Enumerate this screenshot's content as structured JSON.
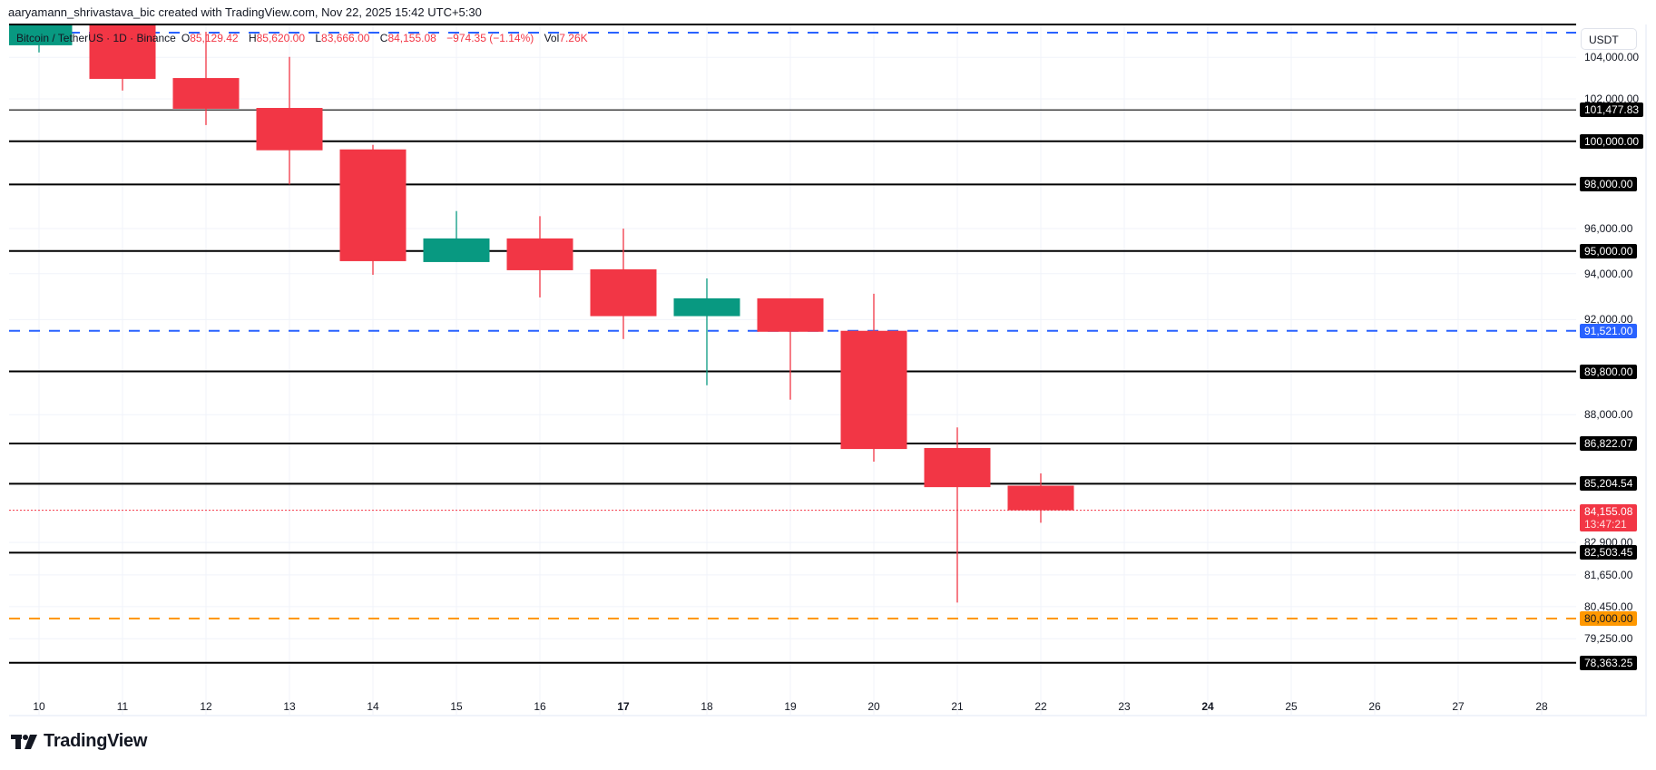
{
  "caption": "aaryamann_shrivastava_bic created with TradingView.com, Nov 22, 2025 15:42 UTC+5:30",
  "legend": {
    "symbol": "Bitcoin / TetherUS · 1D · Binance",
    "open_key": "O",
    "open": "85,129.42",
    "high_key": "H",
    "high": "85,620.00",
    "low_key": "L",
    "low": "83,666.00",
    "close_key": "C",
    "close": "84,155.08",
    "change": "−974.35 (−1.14%)",
    "vol_key": "Vol",
    "vol": "7.26K"
  },
  "currency_button": "USDT",
  "branding": {
    "logo_text": "TradingView"
  },
  "colors": {
    "up": "#089981",
    "down": "#f23645",
    "level": "#000000",
    "blue_dashed": "#2962ff",
    "orange_dashed": "#ff9800",
    "grid": "#f0f3fa"
  },
  "chart_data": {
    "type": "candlestick",
    "title": "Bitcoin / TetherUS · 1D · Binance",
    "xlabel": "",
    "ylabel": "USDT",
    "scale": "log",
    "ylim": [
      77900,
      106000
    ],
    "grid": true,
    "x_ticks": [
      "10",
      "11",
      "12",
      "13",
      "14",
      "15",
      "16",
      "17",
      "18",
      "19",
      "20",
      "21",
      "22",
      "23",
      "24",
      "25",
      "26",
      "27",
      "28"
    ],
    "y_ticks": [
      "104,000.00",
      "102,000.00",
      "96,000.00",
      "94,000.00",
      "92,000.00",
      "88,000.00",
      "82,900.00",
      "81,650.00",
      "80,450.00",
      "79,250.00"
    ],
    "candles": [
      {
        "day": "10",
        "open": 104590,
        "high": 105610,
        "low": 104240,
        "close": 105610
      },
      {
        "day": "11",
        "open": 105610,
        "high": 105610,
        "low": 102400,
        "close": 102960
      },
      {
        "day": "12",
        "open": 103000,
        "high": 105250,
        "low": 100760,
        "close": 101530
      },
      {
        "day": "13",
        "open": 101570,
        "high": 104020,
        "low": 98000,
        "close": 99580
      },
      {
        "day": "14",
        "open": 99620,
        "high": 99830,
        "low": 93950,
        "close": 94550
      },
      {
        "day": "15",
        "open": 94510,
        "high": 96790,
        "low": 94510,
        "close": 95560
      },
      {
        "day": "16",
        "open": 95560,
        "high": 96560,
        "low": 92960,
        "close": 94150
      },
      {
        "day": "17",
        "open": 94190,
        "high": 96000,
        "low": 91170,
        "close": 92150
      },
      {
        "day": "18",
        "open": 92150,
        "high": 93790,
        "low": 89220,
        "close": 92920
      },
      {
        "day": "19",
        "open": 92920,
        "high": 92920,
        "low": 88620,
        "close": 91480
      },
      {
        "day": "20",
        "open": 91521,
        "high": 93120,
        "low": 86090,
        "close": 86600
      },
      {
        "day": "21",
        "open": 86640,
        "high": 87480,
        "low": 80600,
        "close": 85070
      },
      {
        "day": "22",
        "open": 85129.42,
        "high": 85620,
        "low": 83666,
        "close": 84155.08
      }
    ],
    "horizontal_levels": [
      {
        "value": 105900,
        "label": "",
        "style": "solid",
        "color": "#000000"
      },
      {
        "value": 105200,
        "label": "",
        "style": "dashed",
        "color": "#2962ff"
      },
      {
        "value": 101477.83,
        "label": "101,477.83",
        "style": "solid-thin",
        "color": "#000000"
      },
      {
        "value": 100000,
        "label": "100,000.00",
        "style": "solid",
        "color": "#000000"
      },
      {
        "value": 98000,
        "label": "98,000.00",
        "style": "solid",
        "color": "#000000"
      },
      {
        "value": 95000,
        "label": "95,000.00",
        "style": "solid",
        "color": "#000000"
      },
      {
        "value": 91521,
        "label": "91,521.00",
        "style": "dashed",
        "color": "#2962ff"
      },
      {
        "value": 89800,
        "label": "89,800.00",
        "style": "solid",
        "color": "#000000"
      },
      {
        "value": 86822.07,
        "label": "86,822.07",
        "style": "solid",
        "color": "#000000"
      },
      {
        "value": 85204.54,
        "label": "85,204.54",
        "style": "solid",
        "color": "#000000"
      },
      {
        "value": 82503.45,
        "label": "82,503.45",
        "style": "solid",
        "color": "#000000"
      },
      {
        "value": 80000,
        "label": "80,000.00",
        "style": "dashed",
        "color": "#ff9800"
      },
      {
        "value": 78363.25,
        "label": "78,363.25",
        "style": "solid",
        "color": "#000000"
      }
    ],
    "last_price": {
      "value": 84155.08,
      "label": "84,155.08",
      "countdown": "13:47:21",
      "color": "#f23645"
    }
  }
}
